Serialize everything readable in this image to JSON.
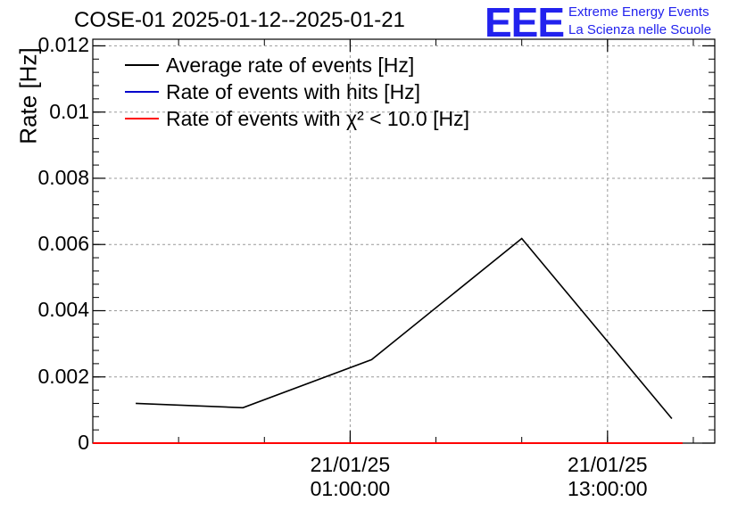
{
  "chart_data": {
    "type": "line",
    "title": "COSE-01 2025-01-12--2025-01-21",
    "ylabel": "Rate [Hz]",
    "xlabel": "",
    "ylim": [
      0,
      0.0122
    ],
    "y_ticks": [
      "0",
      "0.002",
      "0.004",
      "0.006",
      "0.008",
      "0.01",
      "0.012"
    ],
    "y_tick_values": [
      0,
      0.002,
      0.004,
      0.006,
      0.008,
      0.01,
      0.012
    ],
    "xlim_hours": [
      -11,
      18
    ],
    "x_ticks": [
      {
        "date": "21/01/25",
        "time": "01:00:00",
        "hour": 1
      },
      {
        "date": "21/01/25",
        "time": "13:00:00",
        "hour": 13
      }
    ],
    "grid": true,
    "legend_position": "top-left",
    "series": [
      {
        "name": "Average rate of events [Hz]",
        "color": "#000000",
        "x_hours": [
          -9,
          -4,
          2,
          9,
          16
        ],
        "values": [
          0.0012,
          0.00107,
          0.00252,
          0.00618,
          0.00074
        ]
      },
      {
        "name": "Rate of events with hits [Hz]",
        "color": "#0000cc",
        "x_hours": [
          -9,
          16
        ],
        "values": [
          0,
          0
        ]
      },
      {
        "name": "Rate of events with χ² < 10.0 [Hz]",
        "color": "#ff0000",
        "x_hours": [
          -11,
          16.5
        ],
        "values": [
          0,
          0
        ]
      }
    ]
  },
  "legend": {
    "items": [
      {
        "label": "Average rate of events [Hz]",
        "color": "#000000"
      },
      {
        "label": "Rate of events with hits [Hz]",
        "color": "#0000cc"
      },
      {
        "label": "Rate of events with χ² < 10.0 [Hz]",
        "color": "#ff0000"
      }
    ]
  },
  "logo": {
    "mark": "EEE",
    "line1": "Extreme Energy Events",
    "line2": "La Scienza nelle Scuole",
    "color": "#2222ee"
  }
}
